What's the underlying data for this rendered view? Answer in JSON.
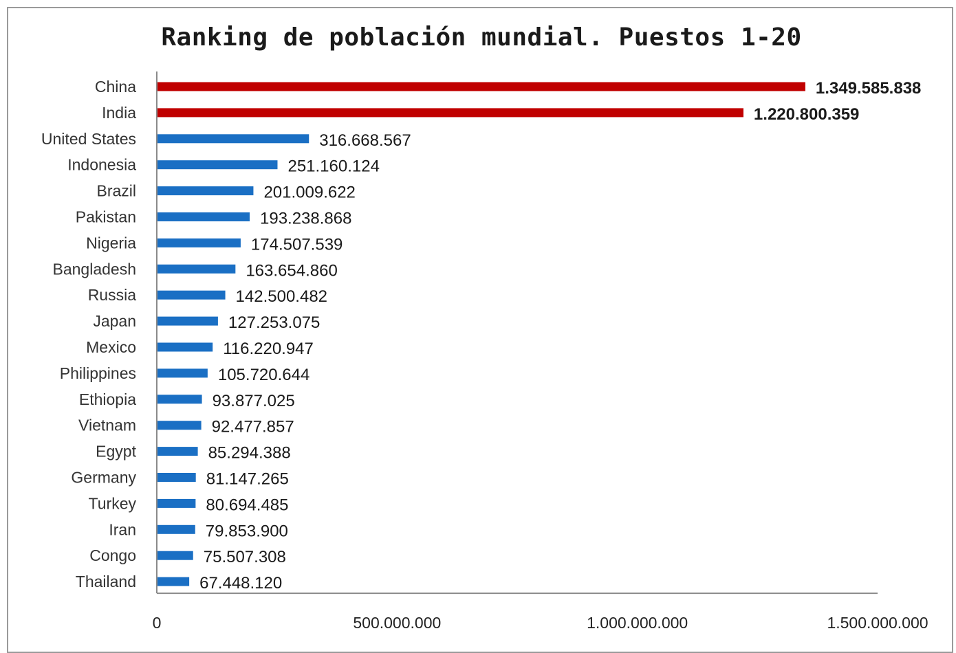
{
  "chart_data": {
    "type": "bar",
    "orientation": "horizontal",
    "title": "Ranking de población mundial. Puestos 1-20",
    "xlabel": "",
    "ylabel": "",
    "xlim": [
      0,
      1500000000
    ],
    "grid": false,
    "legend": "none",
    "colors": {
      "default": "#1a6fc4",
      "highlight": "#c00000"
    },
    "highlighted": [
      "China",
      "India"
    ],
    "categories": [
      "China",
      "India",
      "United States",
      "Indonesia",
      "Brazil",
      "Pakistan",
      "Nigeria",
      "Bangladesh",
      "Russia",
      "Japan",
      "Mexico",
      "Philippines",
      "Ethiopia",
      "Vietnam",
      "Egypt",
      "Germany",
      "Turkey",
      "Iran",
      "Congo",
      "Thailand"
    ],
    "values": [
      1349585838,
      1220800359,
      316668567,
      251160124,
      201009622,
      193238868,
      174507539,
      163654860,
      142500482,
      127253075,
      116220947,
      105720644,
      93877025,
      92477857,
      85294388,
      81147265,
      80694485,
      79853900,
      75507308,
      67448120
    ],
    "data_labels": [
      "1.349.585.838",
      "1.220.800.359",
      "316.668.567",
      "251.160.124",
      "201.009.622",
      "193.238.868",
      "174.507.539",
      "163.654.860",
      "142.500.482",
      "127.253.075",
      "116.220.947",
      "105.720.644",
      "93.877.025",
      "92.477.857",
      "85.294.388",
      "81.147.265",
      "80.694.485",
      "79.853.900",
      "75.507.308",
      "67.448.120"
    ],
    "ticks": [
      0,
      500000000,
      1000000000,
      1500000000
    ],
    "tick_labels": [
      "0",
      "500.000.000",
      "1.000.000.000",
      "1.500.000.000"
    ]
  }
}
